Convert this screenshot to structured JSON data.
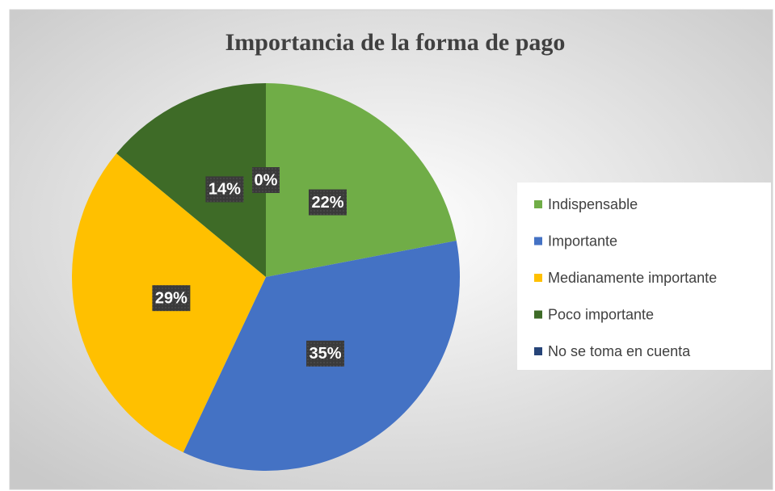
{
  "chart_data": {
    "type": "pie",
    "title": "Importancia de la forma de pago",
    "categories": [
      "Indispensable",
      "Importante",
      "Medianamente importante",
      "Poco importante",
      "No se toma en cuenta"
    ],
    "values": [
      22,
      35,
      29,
      14,
      0
    ],
    "value_labels": [
      "22%",
      "35%",
      "29%",
      "14%",
      "0%"
    ],
    "colors": [
      "#70ad47",
      "#4472c4",
      "#ffc000",
      "#3e6b27",
      "#264478"
    ],
    "legend": "right"
  }
}
